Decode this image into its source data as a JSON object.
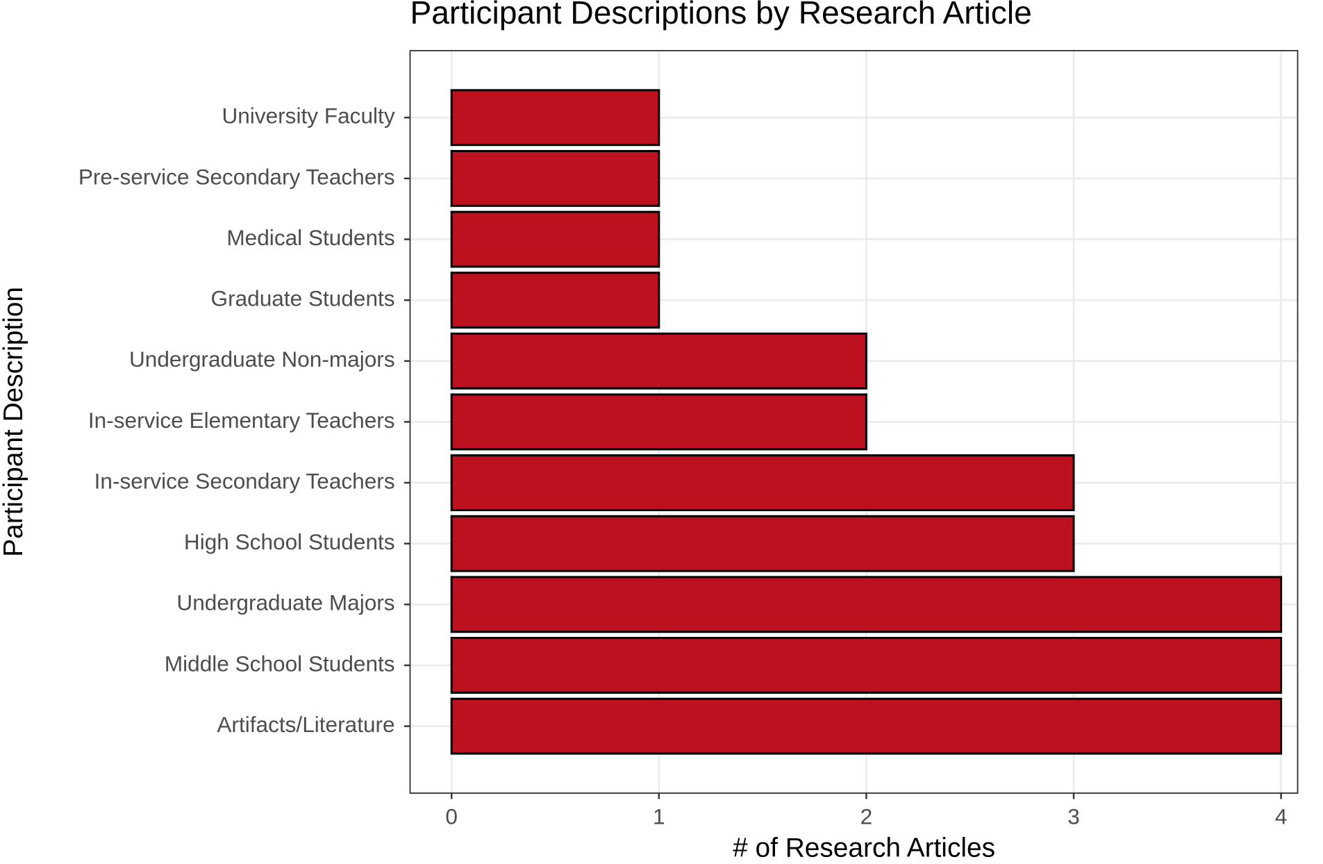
{
  "chart_data": {
    "type": "barh",
    "title": "Participant Descriptions by Research Article",
    "x_label": "# of Research Articles",
    "y_label": "Participant Description",
    "categories": [
      "University Faculty",
      "Pre-service Secondary Teachers",
      "Medical Students",
      "Graduate Students",
      "Undergraduate Non-majors",
      "In-service Elementary Teachers",
      "In-service Secondary Teachers",
      "High School Students",
      "Undergraduate Majors",
      "Middle School Students",
      "Artifacts/Literature"
    ],
    "values": [
      1,
      1,
      1,
      1,
      2,
      2,
      3,
      3,
      4,
      4,
      4
    ],
    "color": "#be111f",
    "xlim": [
      -0.2,
      4.08
    ],
    "xticks": [
      0,
      1,
      2,
      3,
      4
    ],
    "grid": true
  }
}
